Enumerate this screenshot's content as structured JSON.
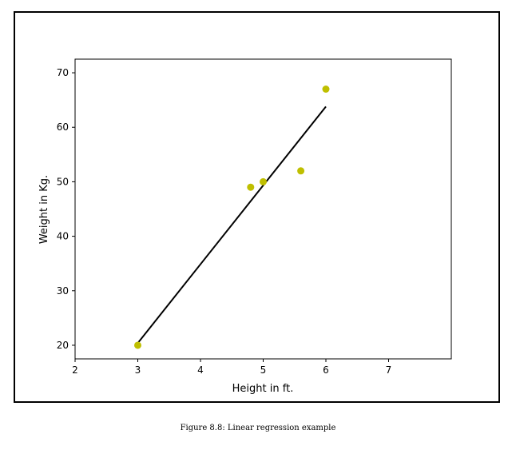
{
  "caption": "Figure 8.8: Linear regression example",
  "chart_data": {
    "type": "scatter",
    "xlabel": "Height in ft.",
    "ylabel": "Weight in Kg.",
    "xlim": [
      2,
      8
    ],
    "ylim": [
      17.5,
      72.5
    ],
    "xticks": [
      2,
      3,
      4,
      5,
      6,
      7
    ],
    "yticks": [
      20,
      30,
      40,
      50,
      60,
      70
    ],
    "grid": false,
    "points": {
      "x": [
        3,
        4.8,
        5,
        5.6,
        6
      ],
      "y": [
        20,
        49,
        50,
        52,
        67
      ],
      "color": "#bfbf00"
    },
    "fit_line": {
      "x": [
        3,
        6
      ],
      "y": [
        20.4,
        63.8
      ],
      "color": "#000000"
    }
  }
}
